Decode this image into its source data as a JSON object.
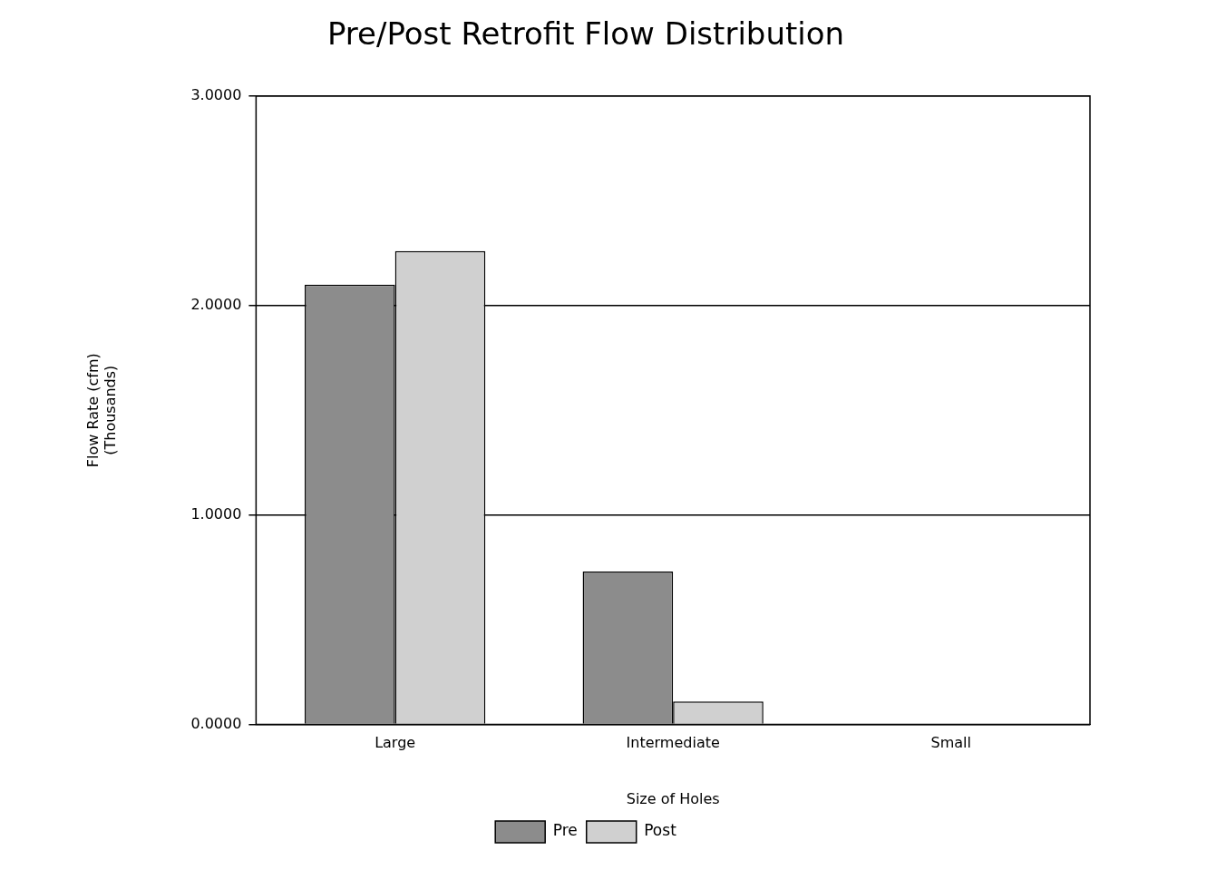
{
  "chart_data": {
    "type": "bar",
    "title": "Pre/Post Retrofit Flow Distribution",
    "xlabel": "Size of Holes",
    "ylabel": "Flow Rate (cfm)\n(Thousands)",
    "categories": [
      "Large",
      "Intermediate",
      "Small"
    ],
    "series": [
      {
        "name": "Pre",
        "color": "#8c8c8c",
        "values": [
          2.1,
          0.73,
          0
        ]
      },
      {
        "name": "Post",
        "color": "#d0d0d0",
        "values": [
          2.26,
          0.11,
          0
        ]
      }
    ],
    "ylim": [
      0,
      3
    ],
    "yticks": [
      {
        "value": 0,
        "label": "0.0000"
      },
      {
        "value": 1,
        "label": "1.0000"
      },
      {
        "value": 2,
        "label": "2.0000"
      },
      {
        "value": 3,
        "label": "3.0000"
      }
    ],
    "grid": "y",
    "legend": "bottom"
  }
}
